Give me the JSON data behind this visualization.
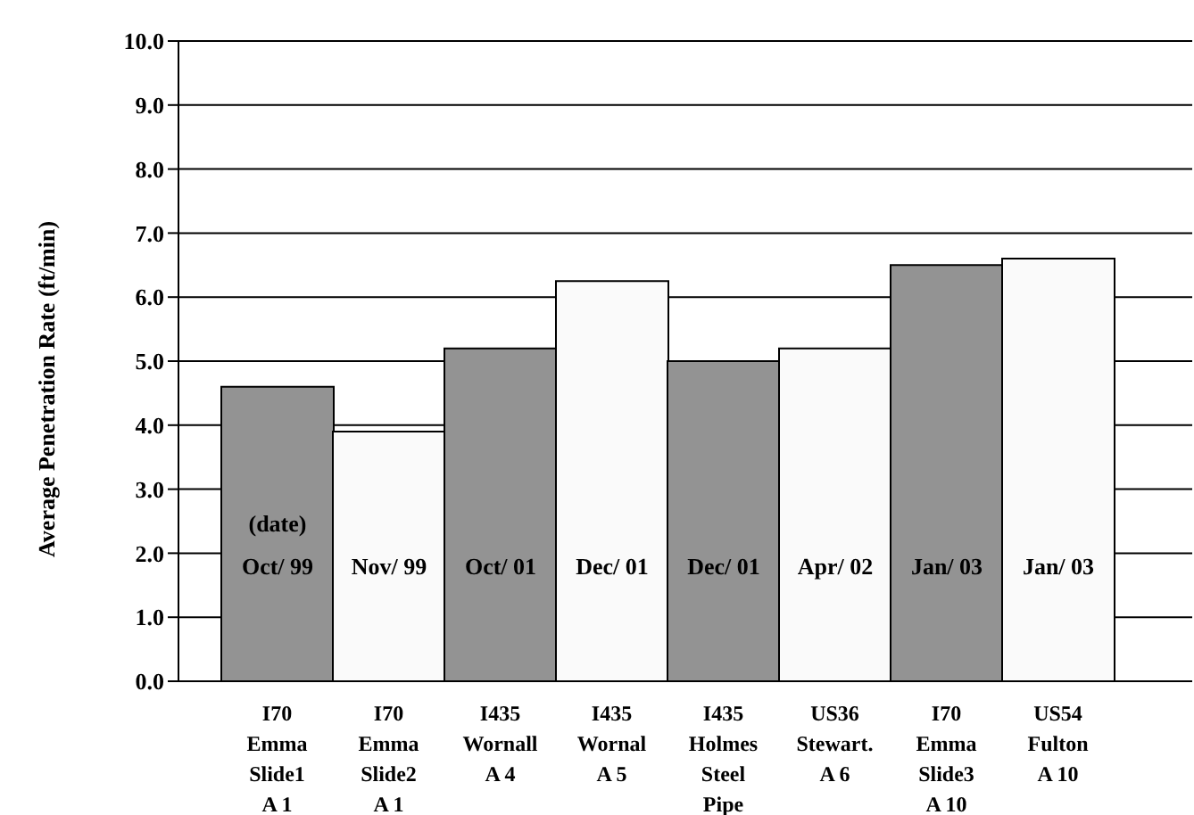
{
  "chart_data": {
    "type": "bar",
    "ylabel": "Average Penetration Rate (ft/min)",
    "categories": [
      "I70\nEmma\nSlide1\nA 1",
      "I70\nEmma\nSlide2\nA 1",
      "I435\nWornall\nA 4",
      "I435\nWornal\nA 5",
      "I435\nHolmes\nSteel\nPipe",
      "US36\nStewart.\nA 6",
      "I70\nEmma\nSlide3\nA 10",
      "US54\nFulton\nA 10"
    ],
    "values": [
      4.6,
      3.9,
      5.2,
      6.25,
      5.0,
      5.2,
      6.5,
      6.6
    ],
    "colors": [
      "#939393",
      "#fafafa",
      "#939393",
      "#fafafa",
      "#939393",
      "#fafafa",
      "#939393",
      "#fafafa"
    ],
    "ylim": [
      0,
      10
    ],
    "yticks": [
      {
        "value": 0,
        "label": "0.0"
      },
      {
        "value": 1,
        "label": "1.0"
      },
      {
        "value": 2,
        "label": "2.0"
      },
      {
        "value": 3,
        "label": "3.0"
      },
      {
        "value": 4,
        "label": "4.0"
      },
      {
        "value": 5,
        "label": "5.0"
      },
      {
        "value": 6,
        "label": "6.0"
      },
      {
        "value": 7,
        "label": "7.0"
      },
      {
        "value": 8,
        "label": "8.0"
      },
      {
        "value": 9,
        "label": "9.0"
      },
      {
        "value": 10,
        "label": "10.0"
      }
    ],
    "grid": "y",
    "value_labels": [
      "Oct/ 99",
      "Nov/ 99",
      "Oct/ 01",
      "Dec/ 01",
      "Dec/ 01",
      "Apr/ 02",
      "Jan/ 03",
      "Jan/ 03"
    ],
    "annotations": [
      "(date)"
    ]
  }
}
